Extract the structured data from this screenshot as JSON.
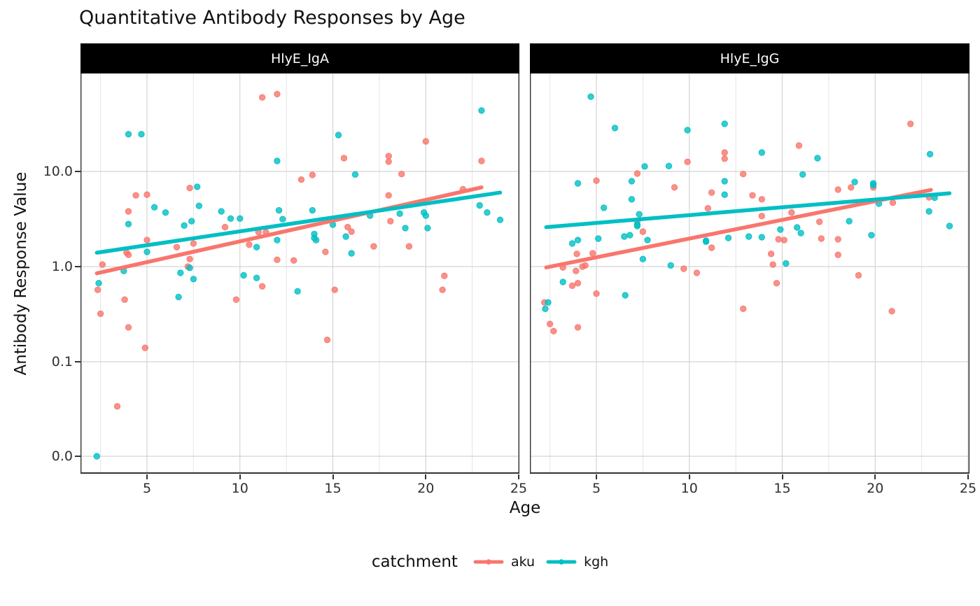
{
  "title": "Quantitative Antibody Responses by Age",
  "axes": {
    "x_label": "Age",
    "y_label": "Antibody Response Value",
    "x_ticks": [
      5,
      10,
      15,
      20,
      25
    ],
    "x_minor_ticks": [
      2.5,
      7.5,
      12.5,
      17.5,
      22.5
    ],
    "y_ticks": [
      {
        "label": "10.0",
        "value": 10
      },
      {
        "label": "1.0",
        "value": 1
      },
      {
        "label": "0.1",
        "value": 0.1
      },
      {
        "label": "0.0",
        "value": 0
      }
    ],
    "x_range": [
      1.5,
      25
    ],
    "y_scale": "pseudo-log10 (0 plotted on baseline tick)"
  },
  "legend": {
    "title": "catchment",
    "items": [
      {
        "label": "aku",
        "color": "#F8766D"
      },
      {
        "label": "kgh",
        "color": "#00BFC4"
      }
    ]
  },
  "chart_data": [
    {
      "type": "scatter",
      "facet": "HlyE_IgA",
      "series": [
        {
          "name": "aku",
          "color": "#F8766D",
          "points": [
            [
              11.2,
              60
            ],
            [
              12,
              65
            ],
            [
              4.4,
              5.6
            ],
            [
              5,
              5.7
            ],
            [
              4,
              3.8
            ],
            [
              7.3,
              6.7
            ],
            [
              9.2,
              2.6
            ],
            [
              5,
              1.9
            ],
            [
              11,
              2.3
            ],
            [
              11.4,
              2.3
            ],
            [
              10.5,
              1.7
            ],
            [
              6.6,
              1.6
            ],
            [
              7.5,
              1.75
            ],
            [
              3.9,
              1.4
            ],
            [
              4,
              1.33
            ],
            [
              2.6,
              1.05
            ],
            [
              7.3,
              1.2
            ],
            [
              12,
              1.18
            ],
            [
              12.9,
              1.16
            ],
            [
              7.2,
              1.0
            ],
            [
              2.35,
              0.57
            ],
            [
              3.8,
              0.45
            ],
            [
              2.5,
              0.32
            ],
            [
              4,
              0.23
            ],
            [
              4.9,
              0.14
            ],
            [
              9.8,
              0.45
            ],
            [
              11.2,
              0.62
            ],
            [
              3.4,
              0.034
            ],
            [
              13.9,
              9.2
            ],
            [
              13.3,
              8.2
            ],
            [
              15.6,
              13.8
            ],
            [
              18,
              14.5
            ],
            [
              18,
              12.7
            ],
            [
              20,
              20.7
            ],
            [
              23,
              12.9
            ],
            [
              18.7,
              9.4
            ],
            [
              18,
              5.6
            ],
            [
              22,
              6.5
            ],
            [
              18.1,
              3.0
            ],
            [
              15.8,
              2.6
            ],
            [
              16,
              2.33
            ],
            [
              17.2,
              1.63
            ],
            [
              19.1,
              1.63
            ],
            [
              14.6,
              1.43
            ],
            [
              21,
              0.8
            ],
            [
              15.1,
              0.57
            ],
            [
              14.7,
              0.17
            ],
            [
              20.9,
              0.57
            ]
          ],
          "trend": {
            "x1": 2.3,
            "y1": 0.85,
            "x2": 23.0,
            "y2": 6.8
          }
        },
        {
          "name": "kgh",
          "color": "#00BFC4",
          "points": [
            [
              4,
              24.6
            ],
            [
              4.7,
              24.6
            ],
            [
              12,
              12.9
            ],
            [
              7.7,
              6.9
            ],
            [
              7.8,
              4.35
            ],
            [
              5.4,
              4.2
            ],
            [
              6,
              3.7
            ],
            [
              9,
              3.8
            ],
            [
              9.5,
              3.2
            ],
            [
              10,
              3.2
            ],
            [
              7,
              2.7
            ],
            [
              7.4,
              3.0
            ],
            [
              4,
              2.8
            ],
            [
              12.1,
              3.9
            ],
            [
              12.3,
              3.15
            ],
            [
              5,
              1.43
            ],
            [
              12,
              1.9
            ],
            [
              10.9,
              1.6
            ],
            [
              6.8,
              0.86
            ],
            [
              10.2,
              0.81
            ],
            [
              2.4,
              0.67
            ],
            [
              3.75,
              0.9
            ],
            [
              7.3,
              0.97
            ],
            [
              7.5,
              0.74
            ],
            [
              6.7,
              0.48
            ],
            [
              10.9,
              0.76
            ],
            [
              13.1,
              0.55
            ],
            [
              2.3,
              0
            ],
            [
              15.3,
              24.1
            ],
            [
              23,
              43.7
            ],
            [
              16.2,
              9.3
            ],
            [
              13.9,
              3.9
            ],
            [
              15,
              2.76
            ],
            [
              14,
              2.2
            ],
            [
              14,
              2.0
            ],
            [
              14.1,
              1.9
            ],
            [
              15.7,
              2.07
            ],
            [
              17,
              3.43
            ],
            [
              18.6,
              3.6
            ],
            [
              19.9,
              3.7
            ],
            [
              20,
              3.43
            ],
            [
              18.9,
              2.54
            ],
            [
              20.1,
              2.54
            ],
            [
              22.9,
              4.4
            ],
            [
              23.3,
              3.7
            ],
            [
              24,
              3.1
            ],
            [
              16,
              1.38
            ]
          ],
          "trend": {
            "x1": 2.3,
            "y1": 1.4,
            "x2": 24.0,
            "y2": 6.0
          }
        }
      ]
    },
    {
      "type": "scatter",
      "facet": "HlyE_IgG",
      "series": [
        {
          "name": "aku",
          "color": "#F8766D",
          "points": [
            [
              11.9,
              15.8
            ],
            [
              11.9,
              13.6
            ],
            [
              9.9,
              12.6
            ],
            [
              12.9,
              9.4
            ],
            [
              5,
              8.0
            ],
            [
              7.2,
              9.5
            ],
            [
              9.2,
              6.8
            ],
            [
              11.2,
              6.0
            ],
            [
              11,
              4.1
            ],
            [
              7.2,
              3.0
            ],
            [
              7.5,
              2.33
            ],
            [
              11.2,
              1.58
            ],
            [
              3.95,
              1.36
            ],
            [
              4.8,
              1.38
            ],
            [
              3.2,
              0.98
            ],
            [
              3.9,
              0.9
            ],
            [
              4.25,
              1.0
            ],
            [
              4.4,
              1.03
            ],
            [
              9.7,
              0.95
            ],
            [
              10.4,
              0.86
            ],
            [
              21.9,
              31.7
            ],
            [
              15.9,
              18.7
            ],
            [
              18,
              6.45
            ],
            [
              18.7,
              6.8
            ],
            [
              19.9,
              6.8
            ],
            [
              13.4,
              5.6
            ],
            [
              13.9,
              5.1
            ],
            [
              13.9,
              3.4
            ],
            [
              15.5,
              3.7
            ],
            [
              17,
              2.96
            ],
            [
              20.95,
              4.7
            ],
            [
              22.9,
              5.35
            ],
            [
              14.8,
              1.94
            ],
            [
              15.1,
              1.9
            ],
            [
              17.1,
              1.97
            ],
            [
              18,
              1.94
            ],
            [
              14.4,
              1.36
            ],
            [
              18,
              1.33
            ],
            [
              14.5,
              1.05
            ],
            [
              19.1,
              0.81
            ],
            [
              3.7,
              0.63
            ],
            [
              4,
              0.67
            ],
            [
              5,
              0.52
            ],
            [
              2.2,
              0.42
            ],
            [
              2.5,
              0.25
            ],
            [
              2.7,
              0.21
            ],
            [
              4,
              0.23
            ],
            [
              12.9,
              0.36
            ],
            [
              14.7,
              0.67
            ],
            [
              20.9,
              0.34
            ]
          ],
          "trend": {
            "x1": 2.3,
            "y1": 0.98,
            "x2": 23.0,
            "y2": 6.4
          }
        },
        {
          "name": "kgh",
          "color": "#00BFC4",
          "points": [
            [
              4.7,
              61
            ],
            [
              6,
              28.6
            ],
            [
              9.9,
              27.2
            ],
            [
              11.9,
              31.7
            ],
            [
              7.6,
              11.3
            ],
            [
              8.9,
              11.4
            ],
            [
              4,
              7.5
            ],
            [
              6.9,
              7.9
            ],
            [
              11.9,
              7.9
            ],
            [
              11.9,
              5.7
            ],
            [
              6.9,
              5.1
            ],
            [
              5.4,
              4.15
            ],
            [
              7.3,
              3.55
            ],
            [
              7.2,
              2.76
            ],
            [
              7.2,
              2.67
            ],
            [
              7.75,
              1.9
            ],
            [
              5.1,
              1.97
            ],
            [
              3.7,
              1.75
            ],
            [
              4,
              1.9
            ],
            [
              6.8,
              2.14
            ],
            [
              6.5,
              2.07
            ],
            [
              10.9,
              1.87
            ],
            [
              10.9,
              1.83
            ],
            [
              12.1,
              2.0
            ],
            [
              9,
              1.03
            ],
            [
              7.5,
              1.2
            ],
            [
              3.2,
              0.69
            ],
            [
              2.4,
              0.42
            ],
            [
              2.25,
              0.36
            ],
            [
              6.55,
              0.5
            ],
            [
              13.9,
              15.8
            ],
            [
              16.9,
              13.8
            ],
            [
              22.95,
              15.2
            ],
            [
              16.1,
              9.3
            ],
            [
              18.9,
              7.75
            ],
            [
              19.9,
              7.5
            ],
            [
              19.9,
              7.2
            ],
            [
              20.2,
              4.6
            ],
            [
              18.6,
              3.0
            ],
            [
              22.9,
              3.8
            ],
            [
              24,
              2.67
            ],
            [
              19.8,
              2.14
            ],
            [
              13.2,
              2.07
            ],
            [
              13.9,
              2.04
            ],
            [
              14.9,
              2.45
            ],
            [
              15.8,
              2.58
            ],
            [
              16,
              2.25
            ],
            [
              15.2,
              1.08
            ],
            [
              23.2,
              5.3
            ]
          ],
          "trend": {
            "x1": 2.3,
            "y1": 2.6,
            "x2": 24.0,
            "y2": 5.9
          }
        }
      ]
    }
  ]
}
